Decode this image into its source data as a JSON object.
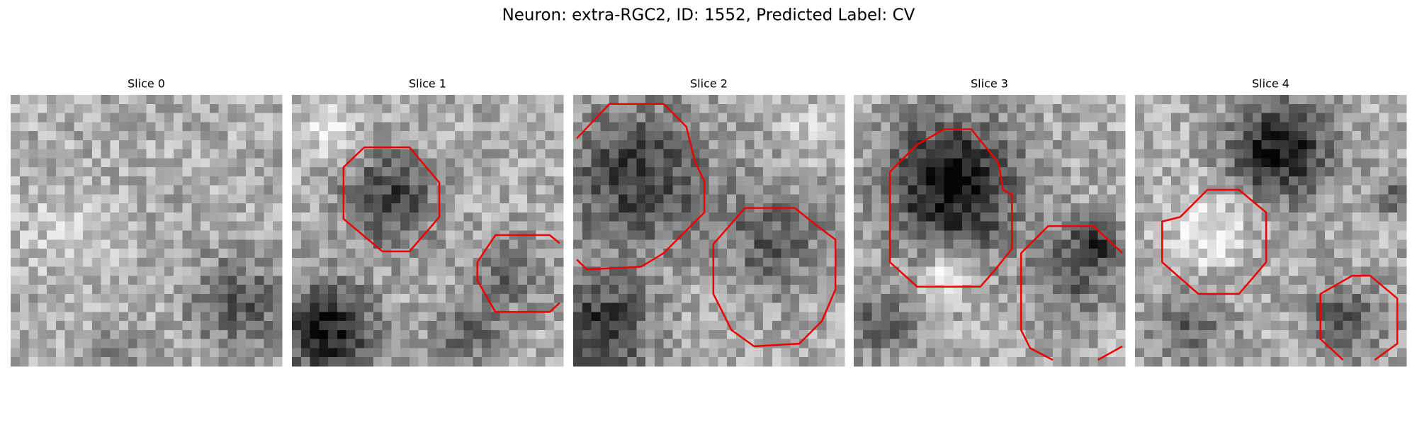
{
  "header": {
    "title": "Neuron: extra-RGC2, ID: 1552, Predicted Label: CV"
  },
  "panels": [
    {
      "title": "Slice 0"
    },
    {
      "title": "Slice 1"
    },
    {
      "title": "Slice 2"
    },
    {
      "title": "Slice 3"
    },
    {
      "title": "Slice 4"
    }
  ]
}
